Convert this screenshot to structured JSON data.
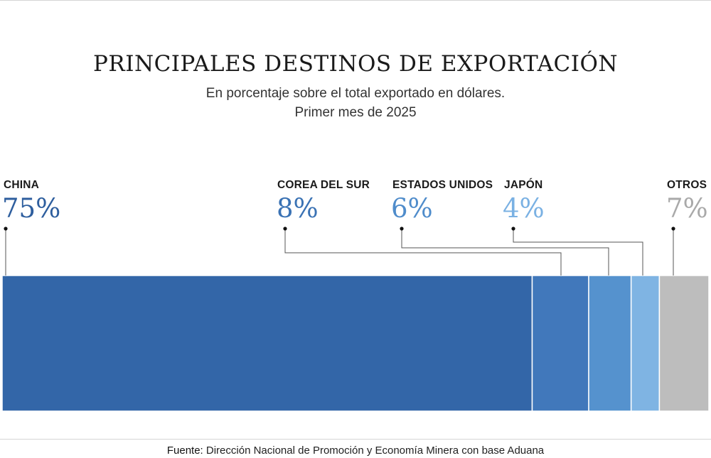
{
  "chart_data": {
    "type": "bar",
    "orientation": "horizontal-stacked",
    "title": "PRINCIPALES DESTINOS DE EXPORTACIÓN",
    "subtitle_line1": "En porcentaje sobre el total exportado en dólares.",
    "subtitle_line2": "Primer mes de 2025",
    "categories": [
      "CHINA",
      "COREA DEL SUR",
      "ESTADOS UNIDOS",
      "JAPÓN",
      "OTROS"
    ],
    "values": [
      75,
      8,
      6,
      4,
      7
    ],
    "value_labels": [
      "75%",
      "8%",
      "6%",
      "4%",
      "7%"
    ],
    "colors": [
      "#3366a8",
      "#4178bb",
      "#5592ce",
      "#7fb4e3",
      "#bdbdbd"
    ],
    "label_colors": [
      "#2e5e9e",
      "#3a72b4",
      "#4f8ccb",
      "#7ab1e3",
      "#a9a9a9"
    ],
    "total": 100
  },
  "source": {
    "label": "Fuente:",
    "text": "Dirección Nacional de Promoción y Economía Minera con base Aduana"
  }
}
